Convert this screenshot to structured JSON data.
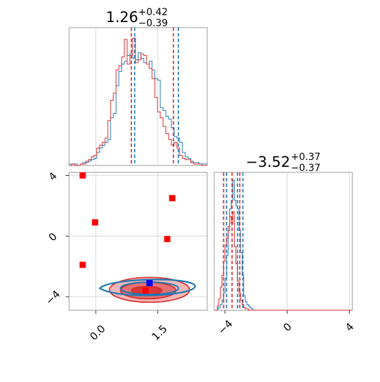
{
  "chart_data": [
    {
      "panel": "top-left",
      "type": "histogram",
      "parameter_index": 0,
      "title": {
        "median": "1.26",
        "plus": "+0.42",
        "minus": "−0.39"
      },
      "grid": true,
      "series": [
        {
          "name": "",
          "color": "#1f77b4",
          "step_y": [
            0.01,
            0.01,
            0.01,
            0,
            0.01,
            0.02,
            0.02,
            0.03,
            0.04,
            0.05,
            0.09,
            0.12,
            0.14,
            0.16,
            0.18,
            0.33,
            0.36,
            0.55,
            0.65,
            0.7,
            0.72,
            0.76,
            0.77,
            0.74,
            0.73,
            0.78,
            0.74,
            0.71,
            0.7,
            0.72,
            0.66,
            0.6,
            0.59,
            0.4,
            0.38,
            0.34,
            0.32,
            0.26,
            0.2,
            0.19,
            0.16,
            0.09,
            0.06,
            0.05,
            0.03,
            0.02,
            0.02,
            0.01,
            0.01,
            0.01
          ],
          "dashed_lines_x": [
            0.94,
            2.0
          ]
        },
        {
          "name": "",
          "color": "#d62728",
          "step_y": [
            0,
            0.01,
            0,
            0,
            0.01,
            0.01,
            0.03,
            0.04,
            0.06,
            0.07,
            0.12,
            0.14,
            0.16,
            0.19,
            0.31,
            0.45,
            0.5,
            0.66,
            0.69,
            0.75,
            0.87,
            0.7,
            0.76,
            0.88,
            0.71,
            0.73,
            0.77,
            0.76,
            0.7,
            0.67,
            0.6,
            0.47,
            0.37,
            0.33,
            0.27,
            0.22,
            0.18,
            0.14,
            0.16,
            0.12,
            0.07,
            0.05,
            0.04,
            0.04,
            0.02,
            0.01,
            0.01,
            0.01,
            0,
            0
          ],
          "dashed_lines_x": [
            0.86,
            1.88
          ]
        }
      ]
    },
    {
      "panel": "bottom-left",
      "type": "scatter",
      "xlim": [
        -0.65,
        2.7
      ],
      "ylim": [
        -4.9,
        4.2
      ],
      "x_ticks": [
        0.0,
        1.5
      ],
      "x_tick_labels": [
        "0.0",
        "1.5"
      ],
      "y_ticks": [
        4,
        0,
        -4
      ],
      "y_tick_labels": [
        "4",
        "0",
        "−4"
      ],
      "grid": true,
      "points_red": [
        {
          "x": -0.32,
          "y": 4.0
        },
        {
          "x": -0.02,
          "y": 0.9
        },
        {
          "x": 1.85,
          "y": 2.5
        },
        {
          "x": 1.73,
          "y": -0.2
        },
        {
          "x": -0.32,
          "y": -1.9
        },
        {
          "x": 1.2,
          "y": -3.6
        }
      ],
      "points_blue": [
        {
          "x": 1.3,
          "y": -3.1
        }
      ],
      "contours_blue_center": {
        "x": 1.3,
        "y": -3.45
      },
      "contours_red_center": {
        "x": 1.3,
        "y": -3.55
      },
      "point_colors": {
        "red": "#ff0000",
        "blue": "#0000ff"
      }
    },
    {
      "panel": "bottom-right",
      "type": "histogram",
      "parameter_index": 1,
      "title": {
        "median": "−3.52",
        "plus": "+0.37",
        "minus": "−0.37"
      },
      "xlim": [
        -4.7,
        4.2
      ],
      "x_ticks": [
        -4,
        0,
        4
      ],
      "x_tick_labels": [
        "−4",
        "0",
        "4"
      ],
      "grid": true,
      "series": [
        {
          "name": "",
          "color": "#1f77b4",
          "x_range": [
            -4.5,
            -2.2
          ],
          "step_y": [
            0.01,
            0.02,
            0.04,
            0.07,
            0.12,
            0.22,
            0.38,
            0.55,
            0.7,
            0.76,
            0.9,
            0.76,
            0.72,
            0.7,
            0.55,
            0.4,
            0.24,
            0.1,
            0.06,
            0.04,
            0.03,
            0.02,
            0.01
          ],
          "dashed_lines_x": [
            -3.9,
            -3.2,
            -2.85
          ]
        },
        {
          "name": "",
          "color": "#d62728",
          "x_range": [
            -4.5,
            -2.2
          ],
          "step_y": [
            0.03,
            0.08,
            0.16,
            0.24,
            0.34,
            0.45,
            0.5,
            0.58,
            0.65,
            0.6,
            0.68,
            0.44,
            0.32,
            0.2,
            0.12,
            0.07,
            0.04,
            0.02,
            0.01,
            0.01,
            0,
            0,
            0
          ],
          "dashed_lines_x": [
            -4.1,
            -3.55,
            -3.05
          ]
        }
      ]
    }
  ]
}
